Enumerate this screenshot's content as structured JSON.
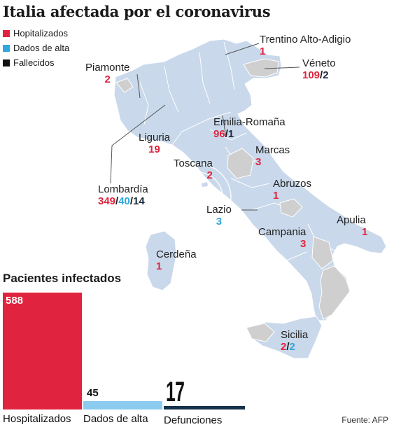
{
  "title": "Italia afectada por el coronavirus",
  "legend": [
    {
      "label": "Hopitalizados",
      "color": "#e0243f"
    },
    {
      "label": "Dados de alta",
      "color": "#2ea7dd"
    },
    {
      "label": "Fallecidos",
      "color": "#111111"
    }
  ],
  "regions": {
    "trentino": {
      "name": "Trentino Alto-Adigio",
      "hosp": "1"
    },
    "veneto": {
      "name": "Véneto",
      "hosp": "109",
      "dead": "2"
    },
    "piamonte": {
      "name": "Piamonte",
      "hosp": "2"
    },
    "emilia": {
      "name": "Emilia-Romaña",
      "hosp": "96",
      "dead": "1"
    },
    "liguria": {
      "name": "Liguria",
      "hosp": "19"
    },
    "marcas": {
      "name": "Marcas",
      "hosp": "3"
    },
    "toscana": {
      "name": "Toscana",
      "hosp": "2"
    },
    "abruzos": {
      "name": "Abruzos",
      "hosp": "1"
    },
    "lombardia": {
      "name": "Lombardía",
      "hosp": "349",
      "alta": "40",
      "dead": "14"
    },
    "lazio": {
      "name": "Lazio",
      "alta": "3"
    },
    "apulia": {
      "name": "Apulia",
      "hosp": "1"
    },
    "campania": {
      "name": "Campania",
      "hosp": "3"
    },
    "cerdena": {
      "name": "Cerdeña",
      "hosp": "1"
    },
    "sicilia": {
      "name": "Sicilia",
      "hosp": "2",
      "alta": "2"
    }
  },
  "map_colors": {
    "land": "#c9d8ea",
    "affected_none": "#cfcfcf",
    "border": "#ffffff",
    "leader": "#555555"
  },
  "patients": {
    "title": "Pacientes infectados",
    "bars": [
      {
        "label": "Hospitalizados",
        "value": 588,
        "color": "#e0243f"
      },
      {
        "label": "Dados de alta",
        "value": 45,
        "color": "#8ccbf0"
      },
      {
        "label": "Defunciones",
        "value": 17,
        "color": "#16324a"
      }
    ]
  },
  "source": "Fuente: AFP"
}
